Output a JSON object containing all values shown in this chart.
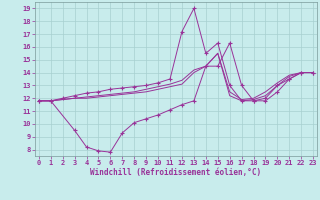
{
  "xlabel": "Windchill (Refroidissement éolien,°C)",
  "xlim": [
    -0.3,
    23.3
  ],
  "ylim": [
    7.5,
    19.5
  ],
  "xticks": [
    0,
    1,
    2,
    3,
    4,
    5,
    6,
    7,
    8,
    9,
    10,
    11,
    12,
    13,
    14,
    15,
    16,
    17,
    18,
    19,
    20,
    21,
    22,
    23
  ],
  "yticks": [
    8,
    9,
    10,
    11,
    12,
    13,
    14,
    15,
    16,
    17,
    18,
    19
  ],
  "bg_color": "#c8ecec",
  "grid_color": "#a8d0d0",
  "line_color": "#993399",
  "lines": [
    {
      "x": [
        0,
        1,
        3,
        4,
        5,
        6,
        7,
        8,
        9,
        10,
        11,
        12,
        13,
        14,
        15,
        16,
        17,
        18,
        19,
        20,
        21,
        22,
        23
      ],
      "y": [
        11.8,
        11.8,
        9.5,
        8.2,
        7.9,
        7.8,
        9.3,
        10.1,
        10.4,
        10.7,
        11.1,
        11.5,
        11.8,
        14.5,
        14.5,
        16.3,
        13.0,
        11.8,
        11.8,
        12.5,
        13.5,
        14.0,
        14.0
      ],
      "marker": true
    },
    {
      "x": [
        0,
        1,
        2,
        3,
        4,
        5,
        6,
        7,
        8,
        9,
        10,
        11,
        12,
        13,
        14,
        15,
        16,
        17,
        18,
        19,
        20,
        21,
        22,
        23
      ],
      "y": [
        11.8,
        11.8,
        12.0,
        12.2,
        12.4,
        12.5,
        12.7,
        12.8,
        12.9,
        13.0,
        13.2,
        13.5,
        17.2,
        19.0,
        15.5,
        16.3,
        13.0,
        11.8,
        11.8,
        12.0,
        13.0,
        13.5,
        14.0,
        14.0
      ],
      "marker": true
    },
    {
      "x": [
        0,
        1,
        2,
        3,
        4,
        5,
        6,
        7,
        8,
        9,
        10,
        11,
        12,
        13,
        14,
        15,
        16,
        17,
        18,
        19,
        20,
        21,
        22,
        23
      ],
      "y": [
        11.8,
        11.8,
        11.9,
        12.0,
        12.1,
        12.2,
        12.3,
        12.4,
        12.5,
        12.7,
        12.9,
        13.1,
        13.4,
        14.2,
        14.5,
        15.5,
        12.5,
        11.9,
        12.0,
        12.5,
        13.2,
        13.8,
        14.0,
        14.0
      ],
      "marker": false
    },
    {
      "x": [
        0,
        1,
        2,
        3,
        4,
        5,
        6,
        7,
        8,
        9,
        10,
        11,
        12,
        13,
        14,
        15,
        16,
        17,
        18,
        19,
        20,
        21,
        22,
        23
      ],
      "y": [
        11.8,
        11.8,
        11.9,
        12.0,
        12.0,
        12.1,
        12.2,
        12.3,
        12.4,
        12.5,
        12.7,
        12.9,
        13.1,
        14.0,
        14.5,
        15.5,
        12.2,
        11.8,
        11.9,
        12.2,
        13.0,
        13.7,
        14.0,
        14.0
      ],
      "marker": false
    }
  ]
}
